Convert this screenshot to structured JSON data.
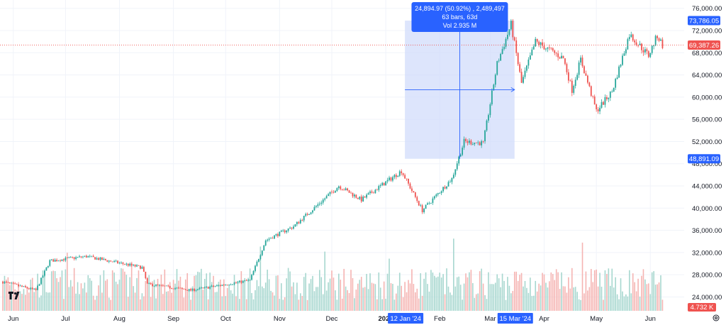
{
  "chart_data": {
    "type": "candlestick",
    "price_axis": {
      "ticks": [
        "76,000.00",
        "72,000.00",
        "68,000.00",
        "64,000.00",
        "60,000.00",
        "56,000.00",
        "52,000.00",
        "48,000.00",
        "44,000.00",
        "40,000.00",
        "36,000.00",
        "32,000.00",
        "28,000.00",
        "24,000.00"
      ],
      "range": [
        21500,
        77500
      ]
    },
    "time_axis": {
      "labels": [
        "Jun",
        "Jul",
        "Aug",
        "Sep",
        "Oct",
        "Nov",
        "Dec",
        "2024",
        "Feb",
        "Mar",
        "Apr",
        "May",
        "Jun"
      ]
    },
    "price_tags": {
      "range_high": "73,786.05",
      "current": "69,387.26",
      "range_low": "48,891.09",
      "volume": "4.732 K"
    },
    "date_tags": {
      "start": "12 Jan '24",
      "end": "15 Mar '24"
    },
    "measure_tooltip": {
      "line1": "24,894.97 (50.92%) , 2,489,497",
      "line2": "63 bars, 63d",
      "line3": "Vol 2.935 M"
    },
    "price_anchors": [
      {
        "date": "2023-05-26",
        "price": 26700
      },
      {
        "date": "2023-06-14",
        "price": 25200
      },
      {
        "date": "2023-06-22",
        "price": 30500
      },
      {
        "date": "2023-07-13",
        "price": 31300
      },
      {
        "date": "2023-08-14",
        "price": 29300
      },
      {
        "date": "2023-08-17",
        "price": 26300
      },
      {
        "date": "2023-09-11",
        "price": 25200
      },
      {
        "date": "2023-10-15",
        "price": 27000
      },
      {
        "date": "2023-10-24",
        "price": 34200
      },
      {
        "date": "2023-11-09",
        "price": 36700
      },
      {
        "date": "2023-12-05",
        "price": 44000
      },
      {
        "date": "2023-12-18",
        "price": 41500
      },
      {
        "date": "2024-01-10",
        "price": 46700
      },
      {
        "date": "2024-01-22",
        "price": 39600
      },
      {
        "date": "2024-02-08",
        "price": 45300
      },
      {
        "date": "2024-02-15",
        "price": 52000
      },
      {
        "date": "2024-02-26",
        "price": 51700
      },
      {
        "date": "2024-03-05",
        "price": 66000
      },
      {
        "date": "2024-03-13",
        "price": 73100
      },
      {
        "date": "2024-03-19",
        "price": 62500
      },
      {
        "date": "2024-03-27",
        "price": 70000
      },
      {
        "date": "2024-04-12",
        "price": 67000
      },
      {
        "date": "2024-04-17",
        "price": 61300
      },
      {
        "date": "2024-04-22",
        "price": 66800
      },
      {
        "date": "2024-05-01",
        "price": 57500
      },
      {
        "date": "2024-05-10",
        "price": 61000
      },
      {
        "date": "2024-05-20",
        "price": 71300
      },
      {
        "date": "2024-05-31",
        "price": 67500
      },
      {
        "date": "2024-06-05",
        "price": 71100
      },
      {
        "date": "2024-06-08",
        "price": 69387
      }
    ]
  },
  "icons": {
    "logo": "tradingview-logo-icon",
    "settings": "settings-gear-icon"
  },
  "colors": {
    "up": "#26a69a",
    "down": "#ef5350",
    "accent": "#2962ff",
    "measure_fill": "#d1dcfb",
    "vol_up": "#a7d7cf",
    "vol_down": "#f5b4b2"
  }
}
